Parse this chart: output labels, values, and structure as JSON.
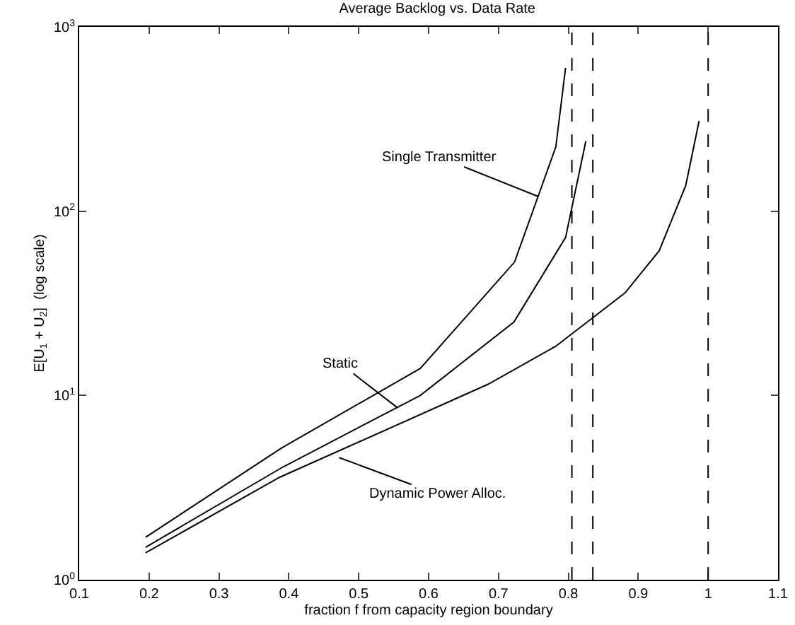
{
  "chart_data": {
    "type": "line",
    "title": "Average Backlog vs. Data Rate",
    "xlabel": "fraction f from capacity region boundary",
    "ylabel": "E[U$_{1}$ + U$_{2}$]  (log scale)",
    "log": "y",
    "grid": false,
    "marker": "none",
    "line_style": "solid",
    "xlim": [
      0.1,
      1.1
    ],
    "xticks": [
      0.1,
      0.2,
      0.3,
      0.4,
      0.5,
      0.6,
      0.7,
      0.8,
      0.9,
      1,
      1.1
    ],
    "ylim": [
      1,
      1000
    ],
    "yticks": [
      {
        "value": 1,
        "label": "10$^{0}$"
      },
      {
        "value": 10,
        "label": "10$^{1}$"
      },
      {
        "value": 100,
        "label": "10$^{2}$"
      },
      {
        "value": 1000,
        "label": "10$^{3}$"
      }
    ],
    "series": [
      {
        "color": "#000000",
        "x": [
          0.195,
          0.39,
          0.588,
          0.723,
          0.782,
          0.796
        ],
        "values": [
          1.7,
          5.2,
          14,
          53,
          223,
          600
        ]
      },
      {
        "color": "#000000",
        "x": [
          0.195,
          0.392,
          0.588,
          0.722,
          0.796,
          0.825
        ],
        "values": [
          1.5,
          4.1,
          10,
          25,
          72,
          240
        ]
      },
      {
        "color": "#000000",
        "x": [
          0.195,
          0.387,
          0.685,
          0.782,
          0.881,
          0.93,
          0.968,
          0.987
        ],
        "values": [
          1.4,
          3.6,
          11.5,
          18.5,
          36,
          61,
          138,
          308
        ]
      }
    ],
    "annotations": [
      {
        "text": "Single Transmitter",
        "x": 0.757,
        "y": 120
      },
      {
        "text": "Static",
        "x": 0.555,
        "y": 8.6
      },
      {
        "text": "Dynamic Power Alloc.",
        "x": 0.472,
        "y": 4.6
      }
    ],
    "ref_lines": [
      {
        "axis": "x",
        "value": 0.805,
        "color": "#000000",
        "line_style": "dashed"
      },
      {
        "axis": "x",
        "value": 0.835,
        "color": "#000000",
        "line_style": "dashed"
      },
      {
        "axis": "x",
        "value": 1,
        "color": "#000000",
        "line_style": "dashed"
      }
    ]
  }
}
